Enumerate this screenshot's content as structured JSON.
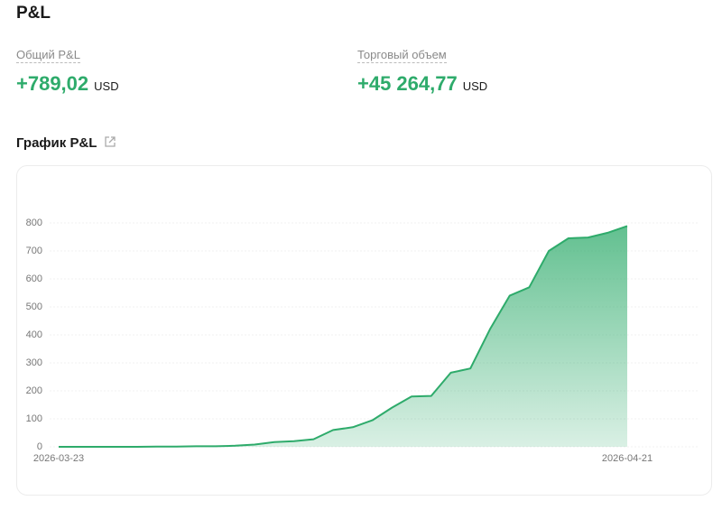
{
  "header": {
    "title": "P&L"
  },
  "metrics": [
    {
      "label": "Общий P&L",
      "value": "+789,02",
      "unit": "USD"
    },
    {
      "label": "Торговый объем",
      "value": "+45 264,77",
      "unit": "USD"
    }
  ],
  "section_title": "График P&L",
  "chart_data": {
    "type": "area",
    "color": "#2eab6b",
    "x": [
      "2026-03-23",
      "2026-03-24",
      "2026-03-25",
      "2026-03-26",
      "2026-03-27",
      "2026-03-28",
      "2026-03-29",
      "2026-03-30",
      "2026-03-31",
      "2026-04-01",
      "2026-04-02",
      "2026-04-03",
      "2026-04-04",
      "2026-04-05",
      "2026-04-06",
      "2026-04-07",
      "2026-04-08",
      "2026-04-09",
      "2026-04-10",
      "2026-04-11",
      "2026-04-12",
      "2026-04-13",
      "2026-04-14",
      "2026-04-15",
      "2026-04-16",
      "2026-04-17",
      "2026-04-18",
      "2026-04-19",
      "2026-04-20",
      "2026-04-21"
    ],
    "values": [
      0,
      0,
      0,
      0,
      0,
      1,
      1,
      2,
      2,
      4,
      8,
      17,
      20,
      27,
      60,
      70,
      95,
      140,
      180,
      182,
      265,
      280,
      420,
      540,
      570,
      700,
      745,
      748,
      765,
      789.02
    ],
    "xlim": [
      "2026-03-23",
      "2026-04-21"
    ],
    "xticks": [
      "2026-03-23",
      "2026-04-21"
    ],
    "ylim": [
      0,
      800
    ],
    "yticks": [
      0,
      100,
      200,
      300,
      400,
      500,
      600,
      700,
      800
    ],
    "grid": true
  }
}
